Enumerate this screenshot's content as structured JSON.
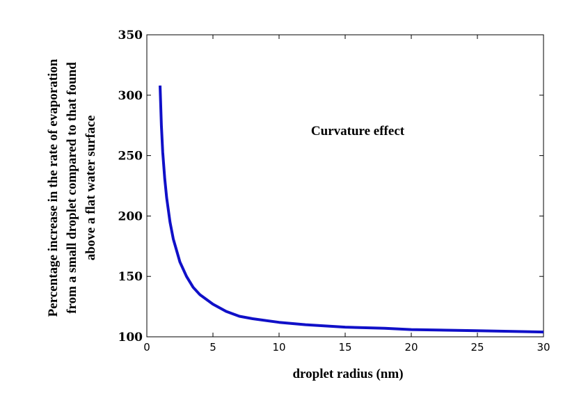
{
  "chart_data": {
    "type": "line",
    "title": "",
    "xlabel": "droplet radius (nm)",
    "ylabel_lines": [
      "Percentage increase in the rate of evaporation",
      "from a small droplet compared to that found",
      "above a flat water surface"
    ],
    "annotation": "Curvature effect",
    "xlim": [
      0,
      30
    ],
    "ylim": [
      100,
      350
    ],
    "xticks": [
      0,
      5,
      10,
      15,
      20,
      25,
      30
    ],
    "yticks": [
      100,
      150,
      200,
      250,
      300,
      350
    ],
    "grid": false,
    "legend": "none",
    "line_color": "#1010c8",
    "series": [
      {
        "x": [
          1,
          1.1,
          1.2,
          1.35,
          1.5,
          1.75,
          2,
          2.5,
          3,
          3.5,
          4,
          5,
          6,
          7,
          8,
          10,
          12,
          15,
          18,
          20,
          25,
          30
        ],
        "values": [
          308,
          275,
          253,
          231,
          215,
          195,
          181,
          162,
          150,
          141,
          135,
          127,
          121,
          117,
          115,
          112,
          110,
          108,
          107,
          106,
          105,
          104
        ]
      }
    ]
  }
}
